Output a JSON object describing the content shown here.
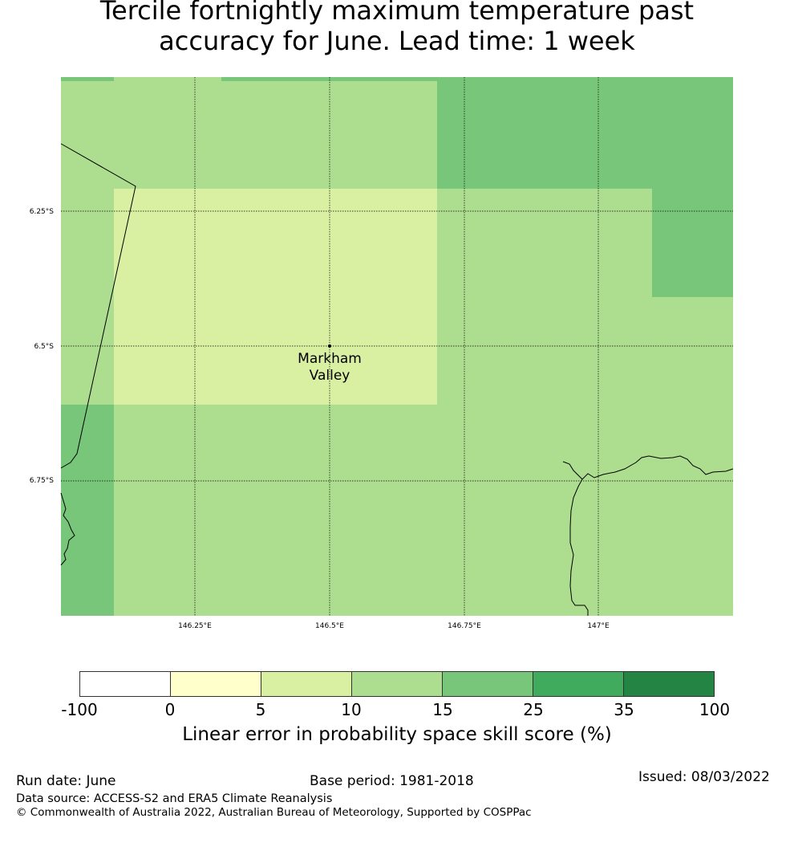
{
  "title": {
    "line1": "Tercile fortnightly maximum temperature past",
    "line2": "accuracy for June. Lead time: 1 week"
  },
  "map": {
    "lat_labels": [
      "6.25°S",
      "6.5°S",
      "6.75°S"
    ],
    "lon_labels": [
      "146.25°E",
      "146.5°E",
      "146.75°E",
      "147°E"
    ],
    "location": {
      "name_line1": "Markham",
      "name_line2": "Valley"
    }
  },
  "colorbar": {
    "label": "Linear error in probability space skill score (%)",
    "ticks": [
      "-100",
      "0",
      "5",
      "10",
      "15",
      "25",
      "35",
      "100"
    ],
    "colors": [
      "#ffffff",
      "#ffffcc",
      "#d9f0a3",
      "#addd8e",
      "#78c679",
      "#41ab5d",
      "#238443"
    ]
  },
  "footer": {
    "run_date": "Run date: June",
    "base_period": "Base period: 1981-2018",
    "issued": "Issued: 08/03/2022",
    "data_source": "Data source: ACCESS-S2 and ERA5 Climate Reanalysis",
    "copyright": "© Commonwealth of Australia 2022, Australian Bureau of Meteorology, Supported by COSPPac"
  }
}
